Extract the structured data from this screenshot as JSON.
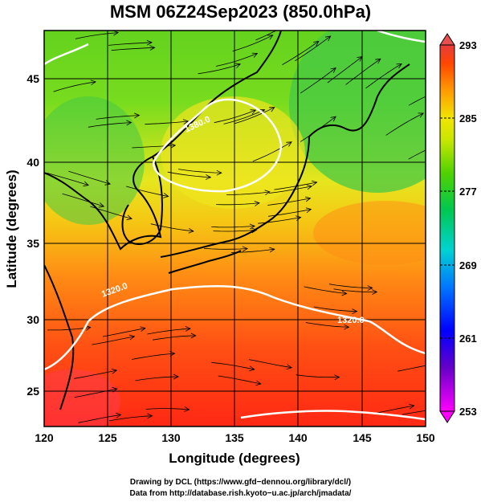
{
  "title": "MSM 06Z24Sep2023 (850.0hPa)",
  "x_axis": {
    "label": "Longitude (degrees)",
    "ticks": [
      "120",
      "125",
      "130",
      "135",
      "140",
      "145",
      "150"
    ],
    "range": [
      120,
      150
    ]
  },
  "y_axis": {
    "label": "Latitude  (degrees)",
    "ticks": [
      "25",
      "30",
      "35",
      "40",
      "45"
    ],
    "range": [
      22.5,
      47.7
    ]
  },
  "colorbar": {
    "ticks": [
      "293",
      "285",
      "277",
      "269",
      "261",
      "253"
    ],
    "range": [
      253,
      293
    ],
    "colors": [
      "#ff00ff",
      "#4b00c8",
      "#0000ff",
      "#0080ff",
      "#00d2d2",
      "#00c83c",
      "#50d200",
      "#a0e600",
      "#e6e600",
      "#ffc800",
      "#ff8000",
      "#ff3c00",
      "#e63c3c"
    ]
  },
  "contours": {
    "label_a": "1320.0",
    "label_b": "1380.0",
    "color": "#ffffff"
  },
  "credits": {
    "line1": "Drawing by DCL (https://www.gfd−dennou.org/library/dcl/)",
    "line2": "Data from http://database.rish.kyoto−u.ac.jp/arch/jmadata/"
  }
}
